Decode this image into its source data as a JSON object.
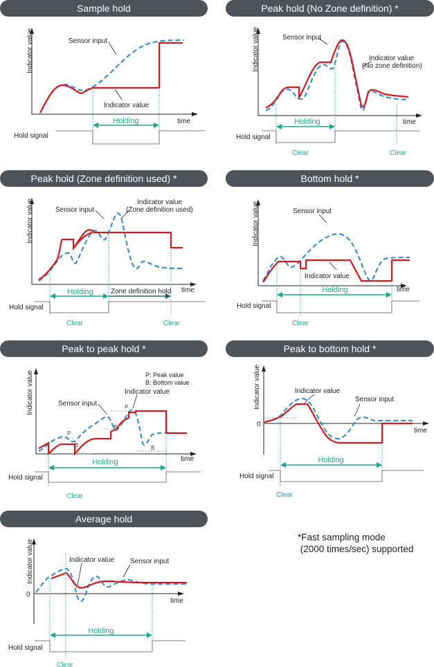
{
  "colors": {
    "banner": "#4d5359",
    "indicator": "#d7191f",
    "sensor": "#3b8fd1",
    "holding": "#1ea98e",
    "axis": "#222222",
    "signal": "#555555"
  },
  "common": {
    "y_axis": "Indicator value",
    "x_axis": "time",
    "hold_signal": "Hold signal",
    "holding": "Holding",
    "clear": "Clear",
    "sensor_input": "Sensor input",
    "indicator_value": "Indicator value",
    "zero": "0"
  },
  "panels": {
    "sample": {
      "title": "Sample hold"
    },
    "peak_nozone": {
      "title": "Peak hold (No Zone definition) *",
      "label_l1": "Indicator value",
      "label_l2": "(No zone definition)"
    },
    "peak_zone": {
      "title": "Peak hold (Zone definition used) *",
      "label_l1": "Indicator value",
      "label_l2": "(Zone definition used)",
      "zone_hold": "Zone definition hold"
    },
    "bottom": {
      "title": "Bottom hold *"
    },
    "p2p": {
      "title": "Peak to peak hold *",
      "legend_p": "P: Peak value",
      "legend_b": "B: Bottom value",
      "p": "P",
      "b": "B"
    },
    "p2b": {
      "title": "Peak to bottom hold *"
    },
    "average": {
      "title": "Average hold"
    }
  },
  "footnote": "*Fast sampling mode\n (2000 times/sec) supported"
}
